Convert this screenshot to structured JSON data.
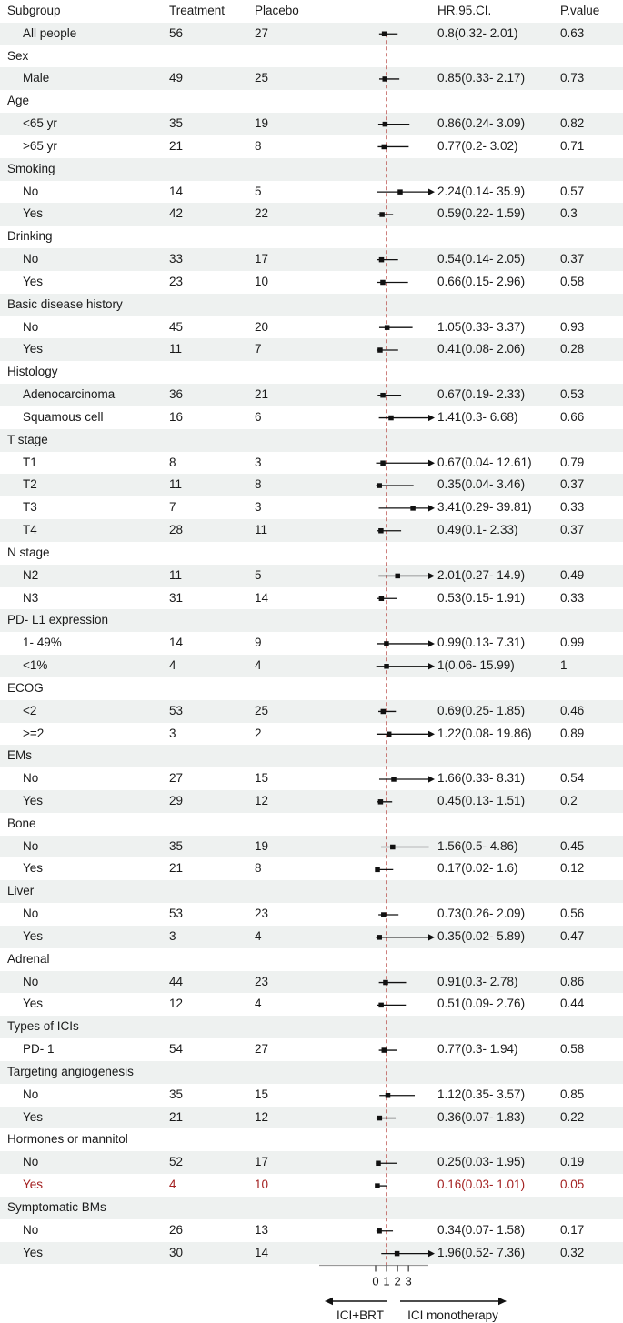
{
  "header": {
    "subgroup": "Subgroup",
    "treatment": "Treatment",
    "placebo": "Placebo",
    "hr_ci": "HR.95.CI.",
    "p_value": "P.value"
  },
  "colors": {
    "stripe": "#eef1f0",
    "text": "#1a1a1a",
    "red_text": "#a32020",
    "reference_line": "#b23b35",
    "whisker": "#111111",
    "axis_line": "#999999",
    "tick": "#333333"
  },
  "chart_data": {
    "type": "scatter",
    "subtype": "forest-plot",
    "x_ticks": [
      "0",
      "1",
      "2",
      "3"
    ],
    "x_range_shown": [
      0,
      5
    ],
    "reference_line_x": 1,
    "grid": false,
    "direction_labels": {
      "left": "ICI+BRT",
      "right": "ICI monotherapy"
    },
    "rows": [
      {
        "kind": "item",
        "label": "All people",
        "treatment": "56",
        "placebo": "27",
        "hr": 0.8,
        "lo": 0.32,
        "hi": 2.01,
        "hr_ci": "0.8(0.32- 2.01)",
        "p": "0.63"
      },
      {
        "kind": "group",
        "label": "Sex"
      },
      {
        "kind": "item",
        "label": "Male",
        "treatment": "49",
        "placebo": "25",
        "hr": 0.85,
        "lo": 0.33,
        "hi": 2.17,
        "hr_ci": "0.85(0.33- 2.17)",
        "p": "0.73"
      },
      {
        "kind": "group",
        "label": "Age"
      },
      {
        "kind": "item",
        "label": "<65 yr",
        "treatment": "35",
        "placebo": "19",
        "hr": 0.86,
        "lo": 0.24,
        "hi": 3.09,
        "hr_ci": "0.86(0.24- 3.09)",
        "p": "0.82"
      },
      {
        "kind": "item",
        "label": ">65 yr",
        "treatment": "21",
        "placebo": "8",
        "hr": 0.77,
        "lo": 0.2,
        "hi": 3.02,
        "hr_ci": "0.77(0.2- 3.02)",
        "p": "0.71"
      },
      {
        "kind": "group",
        "label": "Smoking"
      },
      {
        "kind": "item",
        "label": "No",
        "treatment": "14",
        "placebo": "5",
        "hr": 2.24,
        "lo": 0.14,
        "hi": 35.9,
        "hr_ci": "2.24(0.14- 35.9)",
        "p": "0.57"
      },
      {
        "kind": "item",
        "label": "Yes",
        "treatment": "42",
        "placebo": "22",
        "hr": 0.59,
        "lo": 0.22,
        "hi": 1.59,
        "hr_ci": "0.59(0.22- 1.59)",
        "p": "0.3"
      },
      {
        "kind": "group",
        "label": "Drinking"
      },
      {
        "kind": "item",
        "label": "No",
        "treatment": "33",
        "placebo": "17",
        "hr": 0.54,
        "lo": 0.14,
        "hi": 2.05,
        "hr_ci": "0.54(0.14- 2.05)",
        "p": "0.37"
      },
      {
        "kind": "item",
        "label": "Yes",
        "treatment": "23",
        "placebo": "10",
        "hr": 0.66,
        "lo": 0.15,
        "hi": 2.96,
        "hr_ci": "0.66(0.15- 2.96)",
        "p": "0.58"
      },
      {
        "kind": "group",
        "label": "Basic disease history"
      },
      {
        "kind": "item",
        "label": "No",
        "treatment": "45",
        "placebo": "20",
        "hr": 1.05,
        "lo": 0.33,
        "hi": 3.37,
        "hr_ci": "1.05(0.33- 3.37)",
        "p": "0.93"
      },
      {
        "kind": "item",
        "label": "Yes",
        "treatment": "11",
        "placebo": "7",
        "hr": 0.41,
        "lo": 0.08,
        "hi": 2.06,
        "hr_ci": "0.41(0.08- 2.06)",
        "p": "0.28"
      },
      {
        "kind": "group",
        "label": "Histology"
      },
      {
        "kind": "item",
        "label": "Adenocarcinoma",
        "treatment": "36",
        "placebo": "21",
        "hr": 0.67,
        "lo": 0.19,
        "hi": 2.33,
        "hr_ci": "0.67(0.19- 2.33)",
        "p": "0.53"
      },
      {
        "kind": "item",
        "label": "Squamous cell",
        "treatment": "16",
        "placebo": "6",
        "hr": 1.41,
        "lo": 0.3,
        "hi": 6.68,
        "hr_ci": "1.41(0.3- 6.68)",
        "p": "0.66"
      },
      {
        "kind": "group",
        "label": "T stage"
      },
      {
        "kind": "item",
        "label": "T1",
        "treatment": "8",
        "placebo": "3",
        "hr": 0.67,
        "lo": 0.04,
        "hi": 12.61,
        "hr_ci": "0.67(0.04- 12.61)",
        "p": "0.79"
      },
      {
        "kind": "item",
        "label": "T2",
        "treatment": "11",
        "placebo": "8",
        "hr": 0.35,
        "lo": 0.04,
        "hi": 3.46,
        "hr_ci": "0.35(0.04- 3.46)",
        "p": "0.37"
      },
      {
        "kind": "item",
        "label": "T3",
        "treatment": "7",
        "placebo": "3",
        "hr": 3.41,
        "lo": 0.29,
        "hi": 39.81,
        "hr_ci": "3.41(0.29- 39.81)",
        "p": "0.33"
      },
      {
        "kind": "item",
        "label": "T4",
        "treatment": "28",
        "placebo": "11",
        "hr": 0.49,
        "lo": 0.1,
        "hi": 2.33,
        "hr_ci": "0.49(0.1- 2.33)",
        "p": "0.37"
      },
      {
        "kind": "group",
        "label": "N stage"
      },
      {
        "kind": "item",
        "label": "N2",
        "treatment": "11",
        "placebo": "5",
        "hr": 2.01,
        "lo": 0.27,
        "hi": 14.9,
        "hr_ci": "2.01(0.27- 14.9)",
        "p": "0.49"
      },
      {
        "kind": "item",
        "label": "N3",
        "treatment": "31",
        "placebo": "14",
        "hr": 0.53,
        "lo": 0.15,
        "hi": 1.91,
        "hr_ci": "0.53(0.15- 1.91)",
        "p": "0.33"
      },
      {
        "kind": "group",
        "label": "PD- L1 expression"
      },
      {
        "kind": "item",
        "label": "1- 49%",
        "treatment": "14",
        "placebo": "9",
        "hr": 0.99,
        "lo": 0.13,
        "hi": 7.31,
        "hr_ci": "0.99(0.13- 7.31)",
        "p": "0.99"
      },
      {
        "kind": "item",
        "label": "<1%",
        "treatment": "4",
        "placebo": "4",
        "hr": 1,
        "lo": 0.06,
        "hi": 15.99,
        "hr_ci": "1(0.06- 15.99)",
        "p": "1"
      },
      {
        "kind": "group",
        "label": "ECOG"
      },
      {
        "kind": "item",
        "label": "<2",
        "treatment": "53",
        "placebo": "25",
        "hr": 0.69,
        "lo": 0.25,
        "hi": 1.85,
        "hr_ci": "0.69(0.25- 1.85)",
        "p": "0.46"
      },
      {
        "kind": "item",
        "label": ">=2",
        "treatment": "3",
        "placebo": "2",
        "hr": 1.22,
        "lo": 0.08,
        "hi": 19.86,
        "hr_ci": "1.22(0.08- 19.86)",
        "p": "0.89"
      },
      {
        "kind": "group",
        "label": "EMs"
      },
      {
        "kind": "item",
        "label": "No",
        "treatment": "27",
        "placebo": "15",
        "hr": 1.66,
        "lo": 0.33,
        "hi": 8.31,
        "hr_ci": "1.66(0.33- 8.31)",
        "p": "0.54"
      },
      {
        "kind": "item",
        "label": "Yes",
        "treatment": "29",
        "placebo": "12",
        "hr": 0.45,
        "lo": 0.13,
        "hi": 1.51,
        "hr_ci": "0.45(0.13- 1.51)",
        "p": "0.2"
      },
      {
        "kind": "group",
        "label": "Bone"
      },
      {
        "kind": "item",
        "label": "No",
        "treatment": "35",
        "placebo": "19",
        "hr": 1.56,
        "lo": 0.5,
        "hi": 4.86,
        "hr_ci": "1.56(0.5- 4.86)",
        "p": "0.45"
      },
      {
        "kind": "item",
        "label": "Yes",
        "treatment": "21",
        "placebo": "8",
        "hr": 0.17,
        "lo": 0.02,
        "hi": 1.6,
        "hr_ci": "0.17(0.02- 1.6)",
        "p": "0.12"
      },
      {
        "kind": "group",
        "label": "Liver"
      },
      {
        "kind": "item",
        "label": "No",
        "treatment": "53",
        "placebo": "23",
        "hr": 0.73,
        "lo": 0.26,
        "hi": 2.09,
        "hr_ci": "0.73(0.26- 2.09)",
        "p": "0.56"
      },
      {
        "kind": "item",
        "label": "Yes",
        "treatment": "3",
        "placebo": "4",
        "hr": 0.35,
        "lo": 0.02,
        "hi": 5.89,
        "hr_ci": "0.35(0.02- 5.89)",
        "p": "0.47"
      },
      {
        "kind": "group",
        "label": "Adrenal"
      },
      {
        "kind": "item",
        "label": "No",
        "treatment": "44",
        "placebo": "23",
        "hr": 0.91,
        "lo": 0.3,
        "hi": 2.78,
        "hr_ci": "0.91(0.3- 2.78)",
        "p": "0.86"
      },
      {
        "kind": "item",
        "label": "Yes",
        "treatment": "12",
        "placebo": "4",
        "hr": 0.51,
        "lo": 0.09,
        "hi": 2.76,
        "hr_ci": "0.51(0.09- 2.76)",
        "p": "0.44"
      },
      {
        "kind": "group",
        "label": "Types of ICIs"
      },
      {
        "kind": "item",
        "label": "PD- 1",
        "treatment": "54",
        "placebo": "27",
        "hr": 0.77,
        "lo": 0.3,
        "hi": 1.94,
        "hr_ci": "0.77(0.3- 1.94)",
        "p": "0.58"
      },
      {
        "kind": "group",
        "label": "Targeting angiogenesis"
      },
      {
        "kind": "item",
        "label": "No",
        "treatment": "35",
        "placebo": "15",
        "hr": 1.12,
        "lo": 0.35,
        "hi": 3.57,
        "hr_ci": "1.12(0.35- 3.57)",
        "p": "0.85"
      },
      {
        "kind": "item",
        "label": "Yes",
        "treatment": "21",
        "placebo": "12",
        "hr": 0.36,
        "lo": 0.07,
        "hi": 1.83,
        "hr_ci": "0.36(0.07- 1.83)",
        "p": "0.22"
      },
      {
        "kind": "group",
        "label": "Hormones or mannitol"
      },
      {
        "kind": "item",
        "label": "No",
        "treatment": "52",
        "placebo": "17",
        "hr": 0.25,
        "lo": 0.03,
        "hi": 1.95,
        "hr_ci": "0.25(0.03- 1.95)",
        "p": "0.19"
      },
      {
        "kind": "item",
        "label": "Yes",
        "treatment": "4",
        "placebo": "10",
        "hr": 0.16,
        "lo": 0.03,
        "hi": 1.01,
        "hr_ci": "0.16(0.03- 1.01)",
        "p": "0.05",
        "red": true
      },
      {
        "kind": "group",
        "label": "Symptomatic BMs"
      },
      {
        "kind": "item",
        "label": "No",
        "treatment": "26",
        "placebo": "13",
        "hr": 0.34,
        "lo": 0.07,
        "hi": 1.58,
        "hr_ci": "0.34(0.07- 1.58)",
        "p": "0.17"
      },
      {
        "kind": "item",
        "label": "Yes",
        "treatment": "30",
        "placebo": "14",
        "hr": 1.96,
        "lo": 0.52,
        "hi": 7.36,
        "hr_ci": "1.96(0.52- 7.36)",
        "p": "0.32"
      }
    ]
  }
}
